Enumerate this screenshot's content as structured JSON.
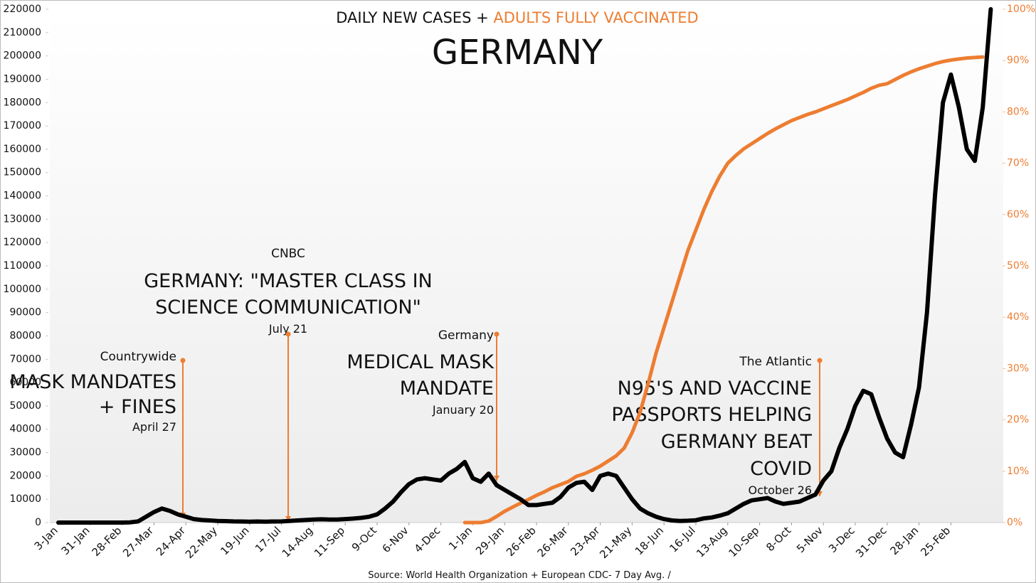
{
  "chart_data": {
    "type": "line",
    "title": "GERMANY",
    "subtitle": [
      "DAILY NEW CASES +",
      "ADULTS FULLY VACCINATED"
    ],
    "source": "Source: World Health Organization + European CDC- 7 Day Avg. /",
    "grid": false,
    "categories": [
      "3-Jan",
      null,
      null,
      null,
      "31-Jan",
      null,
      null,
      null,
      "28-Feb",
      null,
      null,
      null,
      "27-Mar",
      null,
      null,
      null,
      "24-Apr",
      null,
      null,
      null,
      "22-May",
      null,
      null,
      null,
      "19-Jun",
      null,
      null,
      null,
      "17-Jul",
      null,
      null,
      null,
      "14-Aug",
      null,
      null,
      null,
      "11-Sep",
      null,
      null,
      null,
      "9-Oct",
      null,
      null,
      null,
      "6-Nov",
      null,
      null,
      null,
      "4-Dec",
      null,
      null,
      null,
      "1-Jan",
      null,
      null,
      null,
      "29-Jan",
      null,
      null,
      null,
      "26-Feb",
      null,
      null,
      null,
      "26-Mar",
      null,
      null,
      null,
      "23-Apr",
      null,
      null,
      null,
      "21-May",
      null,
      null,
      null,
      "18-Jun",
      null,
      null,
      null,
      "16-Jul",
      null,
      null,
      null,
      "13-Aug",
      null,
      null,
      null,
      "10-Sep",
      null,
      null,
      null,
      "8-Oct",
      null,
      null,
      null,
      "5-Nov",
      null,
      null,
      null,
      "3-Dec",
      null,
      null,
      null,
      "31-Dec",
      null,
      null,
      null,
      "28-Jan",
      null,
      null,
      null,
      "25-Feb",
      null,
      null,
      null,
      null,
      null
    ],
    "ylim": [
      0,
      220000
    ],
    "yticks": [
      0,
      10000,
      20000,
      30000,
      40000,
      50000,
      60000,
      70000,
      80000,
      90000,
      100000,
      110000,
      120000,
      130000,
      140000,
      150000,
      160000,
      170000,
      180000,
      190000,
      200000,
      210000,
      220000
    ],
    "y2lim": [
      0,
      100
    ],
    "y2ticks": [
      {
        "value": 0,
        "label": "0%"
      },
      {
        "value": 10,
        "label": "10%"
      },
      {
        "value": 20,
        "label": "20%"
      },
      {
        "value": 30,
        "label": "30%"
      },
      {
        "value": 40,
        "label": "40%"
      },
      {
        "value": 50,
        "label": "50%"
      },
      {
        "value": 60,
        "label": "60%"
      },
      {
        "value": 70,
        "label": "70%"
      },
      {
        "value": 80,
        "label": "80%"
      },
      {
        "value": 90,
        "label": "90%"
      },
      {
        "value": 100,
        "label": "100%"
      }
    ],
    "series": [
      {
        "color": "#000000",
        "values": [
          0,
          0,
          0,
          0,
          0,
          0,
          0,
          0,
          0,
          100,
          500,
          2500,
          4500,
          6000,
          5000,
          3500,
          2500,
          1500,
          1100,
          900,
          700,
          600,
          500,
          450,
          400,
          450,
          400,
          450,
          500,
          700,
          900,
          1100,
          1300,
          1400,
          1300,
          1300,
          1500,
          1700,
          2000,
          2500,
          3500,
          6000,
          9000,
          13000,
          16500,
          18500,
          19000,
          18500,
          18000,
          21000,
          23000,
          26000,
          19000,
          17500,
          21000,
          16000,
          14000,
          12000,
          10000,
          7500,
          7500,
          8000,
          8500,
          11000,
          15000,
          17000,
          17500,
          14000,
          20000,
          21000,
          20000,
          15000,
          10000,
          6000,
          4000,
          2500,
          1500,
          900,
          700,
          800,
          1000,
          1800,
          2200,
          3000,
          4000,
          6000,
          8000,
          9500,
          10000,
          10500,
          9000,
          8000,
          8500,
          9000,
          10500,
          12000,
          18000,
          22000,
          32000,
          40000,
          50000,
          56500,
          55000,
          45000,
          36000,
          30000,
          28000,
          42000,
          58000,
          90000,
          140000,
          180000,
          192000,
          178000,
          160000,
          155000,
          178000,
          220000
        ]
      },
      {
        "color": "#ed7d31",
        "axis": "y2",
        "values": [
          null,
          null,
          null,
          null,
          null,
          null,
          null,
          null,
          null,
          null,
          null,
          null,
          null,
          null,
          null,
          null,
          null,
          null,
          null,
          null,
          null,
          null,
          null,
          null,
          null,
          null,
          null,
          null,
          null,
          null,
          null,
          null,
          null,
          null,
          null,
          null,
          null,
          null,
          null,
          null,
          null,
          null,
          null,
          null,
          null,
          null,
          null,
          null,
          null,
          null,
          null,
          0,
          0,
          0,
          0.3,
          1.2,
          2.2,
          3,
          3.8,
          4.5,
          5.3,
          6,
          6.8,
          7.4,
          8,
          9,
          9.5,
          10.2,
          11,
          12,
          13,
          14.5,
          17.5,
          21.5,
          27,
          33,
          38,
          43,
          48,
          53,
          57,
          61,
          64.5,
          67.5,
          70,
          71.5,
          72.8,
          73.8,
          74.8,
          75.8,
          76.7,
          77.5,
          78.3,
          78.9,
          79.5,
          80,
          80.6,
          81.2,
          81.8,
          82.4,
          83.1,
          83.8,
          84.6,
          85.2,
          85.5,
          86.3,
          87.1,
          87.8,
          88.4,
          88.9,
          89.4,
          89.8,
          90.1,
          90.3,
          90.5,
          90.6,
          90.7,
          null
        ]
      }
    ],
    "annotations": [
      {
        "source": "Countrywide",
        "headline": [
          "MASK MANDATES",
          "+ FINES"
        ],
        "date": "April 27"
      },
      {
        "source": "CNBC",
        "headline": [
          "GERMANY: \"MASTER CLASS IN",
          "SCIENCE COMMUNICATION\""
        ],
        "date": "July 21"
      },
      {
        "source": "Germany",
        "headline": [
          "MEDICAL MASK",
          "MANDATE"
        ],
        "date": "January 20"
      },
      {
        "source": "The Atlantic",
        "headline": [
          "N95'S AND VACCINE",
          "PASSPORTS HELPING",
          "GERMANY BEAT",
          "COVID"
        ],
        "date": "October 26"
      }
    ]
  }
}
